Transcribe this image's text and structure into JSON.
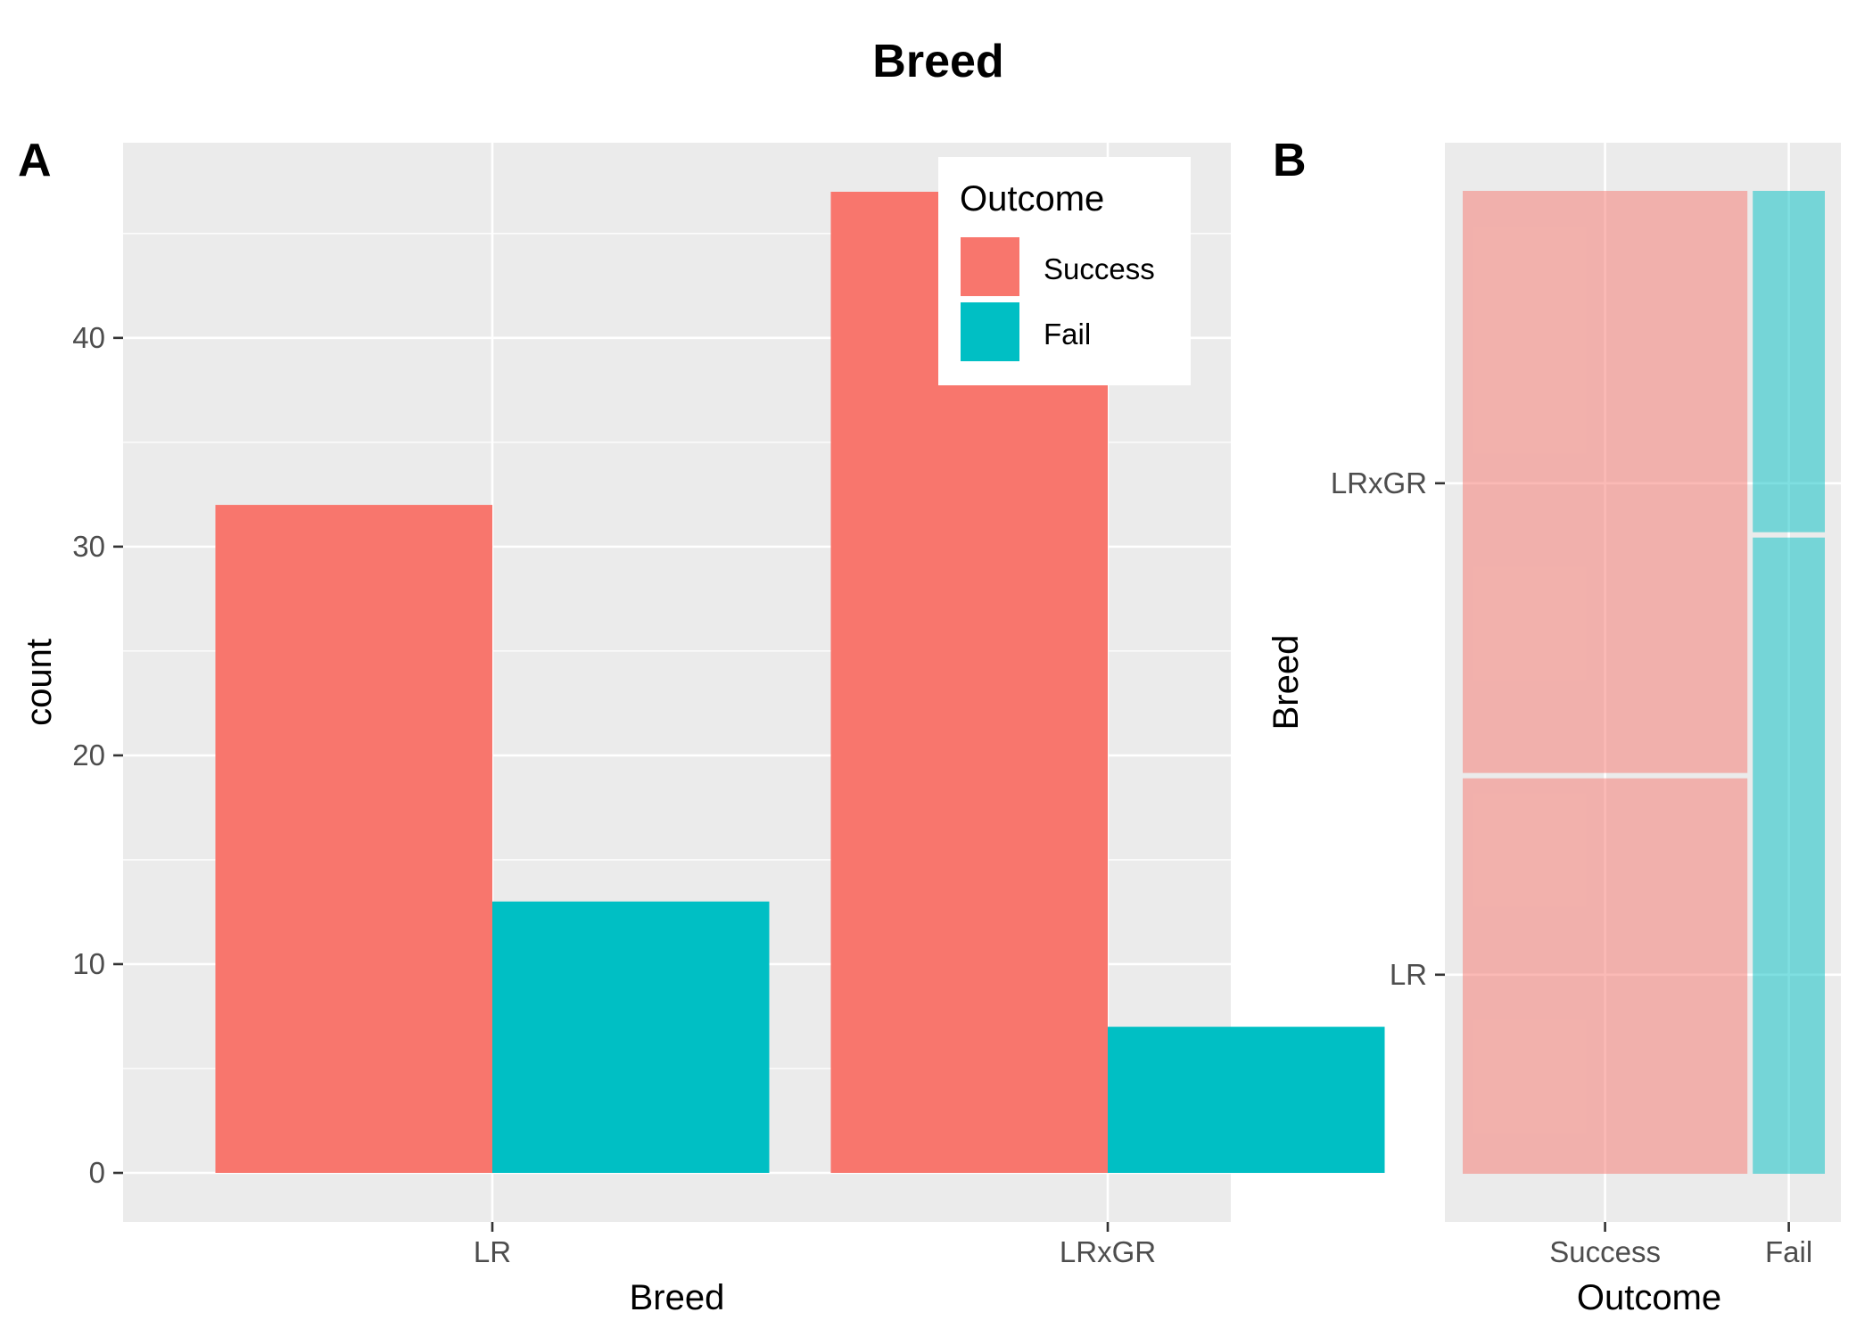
{
  "title": "Breed",
  "colors": {
    "Success": "#F8766D",
    "Fail": "#00BFC4",
    "panel_bg": "#EBEBEB",
    "grid": "#FFFFFF",
    "axis_text": "#4D4D4D"
  },
  "chart_data": [
    {
      "panel": "A",
      "type": "bar",
      "categories": [
        "LR",
        "LRxGR"
      ],
      "series": [
        {
          "name": "Success",
          "values": [
            32,
            47
          ]
        },
        {
          "name": "Fail",
          "values": [
            13,
            7
          ]
        }
      ],
      "xlabel": "Breed",
      "ylabel": "count",
      "yticks": [
        0,
        10,
        20,
        30,
        40
      ],
      "ylim": [
        -2.35,
        49.35
      ],
      "legend": {
        "title": "Outcome",
        "position": "top-right"
      },
      "grid": true
    },
    {
      "panel": "B",
      "type": "mosaic",
      "x_categories": [
        "Success",
        "Fail"
      ],
      "y_categories": [
        "LR",
        "LRxGR"
      ],
      "counts": {
        "Success": {
          "LR": 32,
          "LRxGR": 47
        },
        "Fail": {
          "LR": 13,
          "LRxGR": 7
        }
      },
      "xlabel": "Outcome",
      "ylabel": "Breed",
      "grid": true
    }
  ]
}
